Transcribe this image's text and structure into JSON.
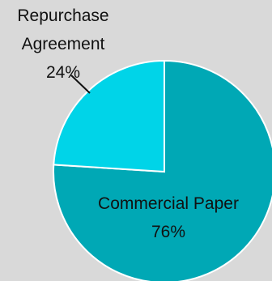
{
  "chart_data": {
    "type": "pie",
    "slices": [
      {
        "label_lines": [
          "Commercial Paper"
        ],
        "percent_label": "76%",
        "value": 76,
        "color": "#00a8b5",
        "text_color": "#111111"
      },
      {
        "label_lines": [
          "Repurchase",
          "Agreement"
        ],
        "percent_label": "24%",
        "value": 24,
        "color": "#00d4e8",
        "text_color": "#111111"
      }
    ],
    "background": "#d9d9d9",
    "slice_border_color": "#ffffff",
    "title": "",
    "legend": "none"
  }
}
